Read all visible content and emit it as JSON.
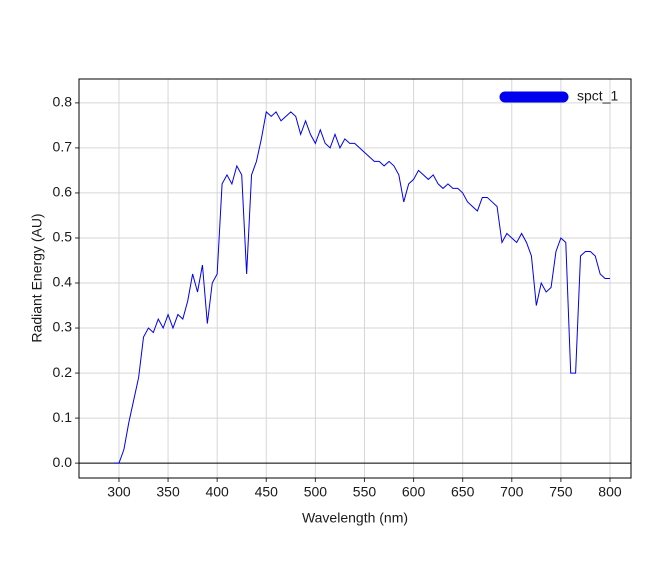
{
  "chart_data": {
    "type": "line",
    "x_label": "Wavelength (nm)",
    "y_label": "Radiant Energy (AU)",
    "x": [
      295,
      300,
      305,
      310,
      315,
      320,
      325,
      330,
      335,
      340,
      345,
      350,
      355,
      360,
      365,
      370,
      375,
      380,
      385,
      390,
      395,
      400,
      405,
      410,
      415,
      420,
      425,
      430,
      435,
      440,
      445,
      450,
      455,
      460,
      465,
      470,
      475,
      480,
      485,
      490,
      495,
      500,
      505,
      510,
      515,
      520,
      525,
      530,
      535,
      540,
      545,
      550,
      555,
      560,
      565,
      570,
      575,
      580,
      585,
      590,
      595,
      600,
      605,
      610,
      615,
      620,
      625,
      630,
      635,
      640,
      645,
      650,
      655,
      660,
      665,
      670,
      675,
      680,
      685,
      690,
      695,
      700,
      705,
      710,
      715,
      720,
      725,
      730,
      735,
      740,
      745,
      750,
      755,
      760,
      765,
      770,
      775,
      780,
      785,
      790,
      795,
      800
    ],
    "series": [
      {
        "name": "spct_1",
        "color": "#0000ee",
        "values": [
          0,
          0,
          0.03,
          0.09,
          0.14,
          0.19,
          0.28,
          0.3,
          0.29,
          0.32,
          0.3,
          0.33,
          0.3,
          0.33,
          0.32,
          0.36,
          0.42,
          0.38,
          0.44,
          0.31,
          0.4,
          0.42,
          0.62,
          0.64,
          0.62,
          0.66,
          0.64,
          0.42,
          0.64,
          0.67,
          0.72,
          0.78,
          0.77,
          0.78,
          0.76,
          0.77,
          0.78,
          0.77,
          0.73,
          0.76,
          0.73,
          0.71,
          0.74,
          0.71,
          0.7,
          0.73,
          0.7,
          0.72,
          0.71,
          0.71,
          0.7,
          0.69,
          0.68,
          0.67,
          0.67,
          0.66,
          0.67,
          0.66,
          0.64,
          0.58,
          0.62,
          0.63,
          0.65,
          0.64,
          0.63,
          0.64,
          0.62,
          0.61,
          0.62,
          0.61,
          0.61,
          0.6,
          0.58,
          0.57,
          0.56,
          0.59,
          0.59,
          0.58,
          0.57,
          0.49,
          0.51,
          0.5,
          0.49,
          0.51,
          0.49,
          0.46,
          0.35,
          0.4,
          0.38,
          0.39,
          0.47,
          0.5,
          0.49,
          0.2,
          0.2,
          0.46,
          0.47,
          0.47,
          0.46,
          0.42,
          0.41,
          0.41
        ]
      }
    ],
    "xlim": [
      259.3,
      821.4
    ],
    "xticks": [
      300,
      350,
      400,
      450,
      500,
      550,
      600,
      650,
      700,
      750,
      800
    ],
    "ylim": [
      -0.033,
      0.853
    ],
    "yticks": [
      {
        "value": 0,
        "label": "0.0"
      },
      0.1,
      0.2,
      0.3,
      0.4,
      0.5,
      0.6,
      0.7,
      0.8
    ],
    "hline": 0,
    "grid": true,
    "legend": "top-right"
  }
}
